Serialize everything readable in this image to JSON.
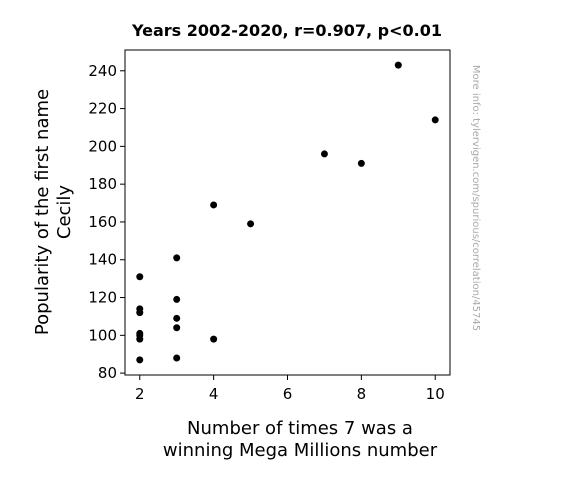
{
  "chart_data": {
    "type": "scatter",
    "title": "Years 2002-2020, r=0.907, p<0.01",
    "xlabel_lines": [
      "Number of times 7 was a",
      "winning Mega Millions number"
    ],
    "ylabel_lines": [
      "Popularity of the first name",
      "Cecily"
    ],
    "watermark": "More info: tylervigen.com/spurious/correlation/45745",
    "xlim": [
      1.6,
      10.4
    ],
    "ylim": [
      79,
      251
    ],
    "xticks": [
      2,
      4,
      6,
      8,
      10
    ],
    "yticks": [
      80,
      100,
      120,
      140,
      160,
      180,
      200,
      220,
      240
    ],
    "point_color": "#000000",
    "points": [
      {
        "x": 2,
        "y": 131
      },
      {
        "x": 2,
        "y": 114
      },
      {
        "x": 2,
        "y": 112
      },
      {
        "x": 2,
        "y": 101
      },
      {
        "x": 2,
        "y": 100
      },
      {
        "x": 2,
        "y": 98
      },
      {
        "x": 2,
        "y": 87
      },
      {
        "x": 3,
        "y": 141
      },
      {
        "x": 3,
        "y": 119
      },
      {
        "x": 3,
        "y": 109
      },
      {
        "x": 3,
        "y": 104
      },
      {
        "x": 3,
        "y": 88
      },
      {
        "x": 4,
        "y": 169
      },
      {
        "x": 4,
        "y": 98
      },
      {
        "x": 5,
        "y": 159
      },
      {
        "x": 7,
        "y": 196
      },
      {
        "x": 8,
        "y": 191
      },
      {
        "x": 9,
        "y": 243
      },
      {
        "x": 10,
        "y": 214
      }
    ]
  }
}
